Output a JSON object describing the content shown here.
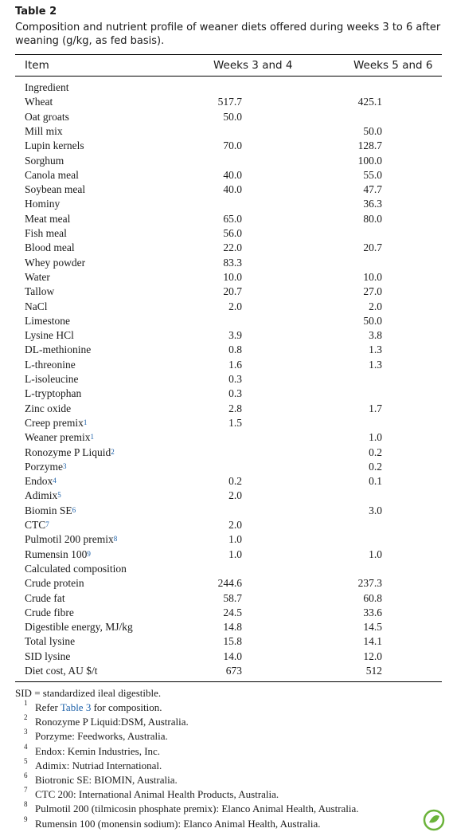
{
  "header": {
    "title": "Table 2",
    "caption_lines": [
      "Composition and nutrient profile of weaner diets offered during weeks 3 to 6 after",
      "weaning (g/kg, as fed basis)."
    ]
  },
  "table": {
    "columns": [
      "Item",
      "Weeks 3 and 4",
      "Weeks 5 and 6"
    ],
    "rows": [
      {
        "item": "Ingredient"
      },
      {
        "item": "Wheat",
        "w34": "517.7",
        "w56": "425.1"
      },
      {
        "item": "Oat groats",
        "w34": "50.0"
      },
      {
        "item": "Mill mix",
        "w56": "50.0"
      },
      {
        "item": "Lupin kernels",
        "w34": "70.0",
        "w56": "128.7"
      },
      {
        "item": "Sorghum",
        "w56": "100.0"
      },
      {
        "item": "Canola meal",
        "w34": "40.0",
        "w56": "55.0"
      },
      {
        "item": "Soybean meal",
        "w34": "40.0",
        "w56": "47.7"
      },
      {
        "item": "Hominy",
        "w56": "36.3"
      },
      {
        "item": "Meat meal",
        "w34": "65.0",
        "w56": "80.0"
      },
      {
        "item": "Fish meal",
        "w34": "56.0"
      },
      {
        "item": "Blood meal",
        "w34": "22.0",
        "w56": "20.7"
      },
      {
        "item": "Whey powder",
        "w34": "83.3"
      },
      {
        "item": "Water",
        "w34": "10.0",
        "w56": "10.0"
      },
      {
        "item": "Tallow",
        "w34": "20.7",
        "w56": "27.0"
      },
      {
        "item": "NaCl",
        "w34": "2.0",
        "w56": "2.0"
      },
      {
        "item": "Limestone",
        "w56": "50.0"
      },
      {
        "item": "Lysine HCl",
        "w34": "3.9",
        "w56": "3.8"
      },
      {
        "item": "DL-methionine",
        "w34": "0.8",
        "w56": "1.3"
      },
      {
        "item": "L-threonine",
        "w34": "1.6",
        "w56": "1.3"
      },
      {
        "item": "L-isoleucine",
        "w34": "0.3"
      },
      {
        "item": "L-tryptophan",
        "w34": "0.3"
      },
      {
        "item": "Zinc oxide",
        "w34": "2.8",
        "w56": "1.7"
      },
      {
        "item": "Creep premix",
        "note": "1",
        "w34": "1.5"
      },
      {
        "item": "Weaner premix",
        "note": "1",
        "w56": "1.0"
      },
      {
        "item": "Ronozyme P Liquid",
        "note": "2",
        "w56": "0.2"
      },
      {
        "item": "Porzyme",
        "note": "3",
        "w56": "0.2"
      },
      {
        "item": "Endox",
        "note": "4",
        "w34": "0.2",
        "w56": "0.1"
      },
      {
        "item": "Adimix",
        "note": "5",
        "w34": "2.0"
      },
      {
        "item": "Biomin SE",
        "note": "6",
        "w56": "3.0"
      },
      {
        "item": "CTC",
        "note": "7",
        "w34": "2.0"
      },
      {
        "item": "Pulmotil 200 premix",
        "note": "8",
        "w34": "1.0"
      },
      {
        "item": "Rumensin 100",
        "note": "9",
        "w34": "1.0",
        "w56": "1.0"
      },
      {
        "item": "Calculated composition"
      },
      {
        "item": "Crude protein",
        "w34": "244.6",
        "w56": "237.3"
      },
      {
        "item": "Crude fat",
        "w34": "58.7",
        "w56": "60.8"
      },
      {
        "item": "Crude fibre",
        "w34": "24.5",
        "w56": "33.6"
      },
      {
        "item": "Digestible energy, MJ/kg",
        "w34": "14.8",
        "w56": "14.5"
      },
      {
        "item": "Total lysine",
        "w34": "15.8",
        "w56": "14.1"
      },
      {
        "item": "SID lysine",
        "w34": "14.0",
        "w56": "12.0"
      },
      {
        "item": "Diet cost, AU $/t",
        "w34": "673",
        "w56": "512"
      }
    ]
  },
  "footnotes": {
    "abbreviation": "SID = standardized ileal digestible.",
    "notes": [
      {
        "num": "1",
        "text": "Refer",
        "link": "Table 3",
        "after": "for composition."
      },
      {
        "num": "2",
        "text": "Ronozyme P Liquid:DSM, Australia."
      },
      {
        "num": "3",
        "text": "Porzyme: Feedworks, Australia."
      },
      {
        "num": "4",
        "text": "Endox: Kemin Industries, Inc."
      },
      {
        "num": "5",
        "text": "Adimix: Nutriad International."
      },
      {
        "num": "6",
        "text": "Biotronic SE: BIOMIN, Australia."
      },
      {
        "num": "7",
        "text": "CTC 200: International Animal Health Products, Australia."
      },
      {
        "num": "8",
        "text": "Pulmotil 200 (tilmicosin phosphate premix): Elanco Animal Health, Australia."
      },
      {
        "num": "9",
        "text": "Rumensin 100 (monensin sodium): Elanco Animal Health, Australia."
      }
    ]
  }
}
